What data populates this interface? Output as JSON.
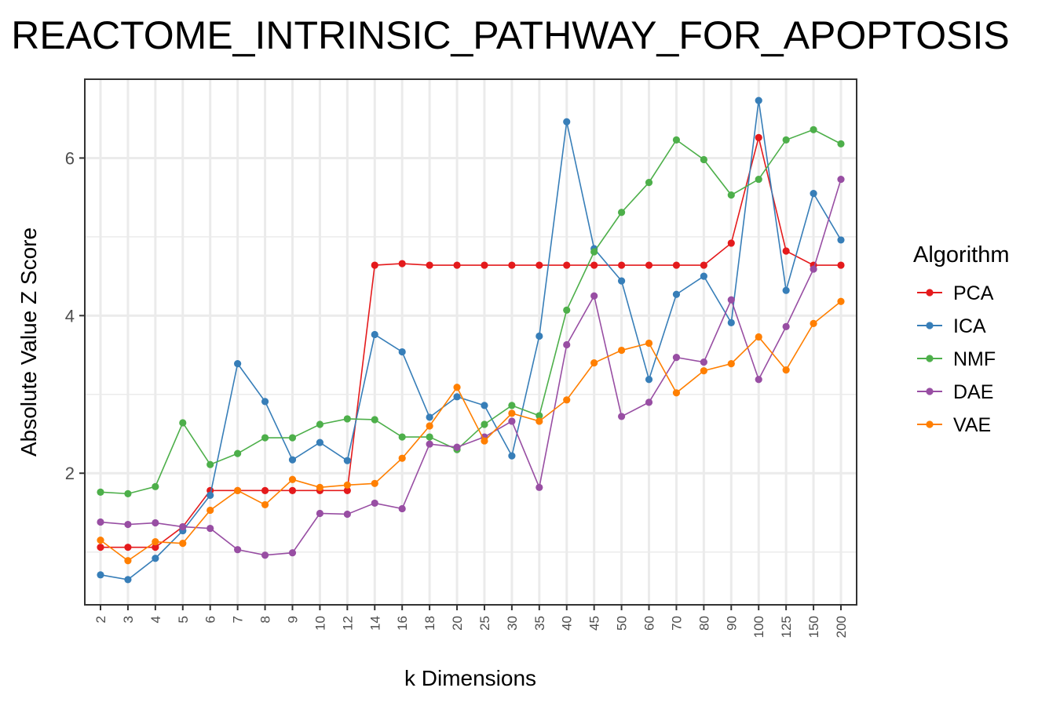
{
  "chart_data": {
    "type": "line",
    "title": "REACTOME_INTRINSIC_PATHWAY_FOR_APOPTOSIS",
    "xlabel": "k Dimensions",
    "ylabel": "Absolute Value Z Score",
    "ylim": [
      0.33,
      7.0
    ],
    "yticks": [
      2,
      4,
      6
    ],
    "grid": true,
    "legend_title": "Algorithm",
    "legend_position": "right",
    "categories": [
      "2",
      "3",
      "4",
      "5",
      "6",
      "7",
      "8",
      "9",
      "10",
      "12",
      "14",
      "16",
      "18",
      "20",
      "25",
      "30",
      "35",
      "40",
      "45",
      "50",
      "60",
      "70",
      "80",
      "90",
      "100",
      "125",
      "150",
      "200"
    ],
    "series": [
      {
        "name": "PCA",
        "color": "#e41a1c",
        "values": [
          1.06,
          1.06,
          1.06,
          1.32,
          1.78,
          1.78,
          1.78,
          1.78,
          1.78,
          1.78,
          4.64,
          4.66,
          4.64,
          4.64,
          4.64,
          4.64,
          4.64,
          4.64,
          4.64,
          4.64,
          4.64,
          4.64,
          4.64,
          4.92,
          6.26,
          4.82,
          4.64,
          4.64
        ]
      },
      {
        "name": "ICA",
        "color": "#377eb8",
        "values": [
          0.71,
          0.65,
          0.92,
          1.27,
          1.72,
          3.39,
          2.91,
          2.17,
          2.39,
          2.16,
          3.76,
          3.54,
          2.71,
          2.97,
          2.86,
          2.22,
          3.74,
          6.46,
          4.85,
          4.44,
          3.19,
          4.27,
          4.5,
          3.91,
          6.73,
          4.32,
          5.55,
          4.96
        ]
      },
      {
        "name": "NMF",
        "color": "#4daf4a",
        "values": [
          1.76,
          1.74,
          1.83,
          2.64,
          2.11,
          2.25,
          2.45,
          2.45,
          2.62,
          2.69,
          2.68,
          2.46,
          2.46,
          2.3,
          2.62,
          2.86,
          2.73,
          4.07,
          4.81,
          5.31,
          5.69,
          6.23,
          5.98,
          5.53,
          5.73,
          6.23,
          6.36,
          6.18
        ]
      },
      {
        "name": "DAE",
        "color": "#984ea3",
        "values": [
          1.38,
          1.35,
          1.37,
          1.32,
          1.3,
          1.03,
          0.96,
          0.99,
          1.49,
          1.48,
          1.62,
          1.55,
          2.37,
          2.33,
          2.46,
          2.66,
          1.82,
          3.63,
          4.25,
          2.72,
          2.9,
          3.47,
          3.41,
          4.2,
          3.19,
          3.86,
          4.59,
          5.73
        ]
      },
      {
        "name": "VAE",
        "color": "#ff7f00",
        "values": [
          1.15,
          0.89,
          1.13,
          1.11,
          1.53,
          1.78,
          1.6,
          1.92,
          1.82,
          1.85,
          1.87,
          2.19,
          2.6,
          3.09,
          2.41,
          2.76,
          2.66,
          2.93,
          3.4,
          3.56,
          3.65,
          3.02,
          3.3,
          3.39,
          3.73,
          3.31,
          3.9,
          4.18
        ]
      }
    ]
  }
}
